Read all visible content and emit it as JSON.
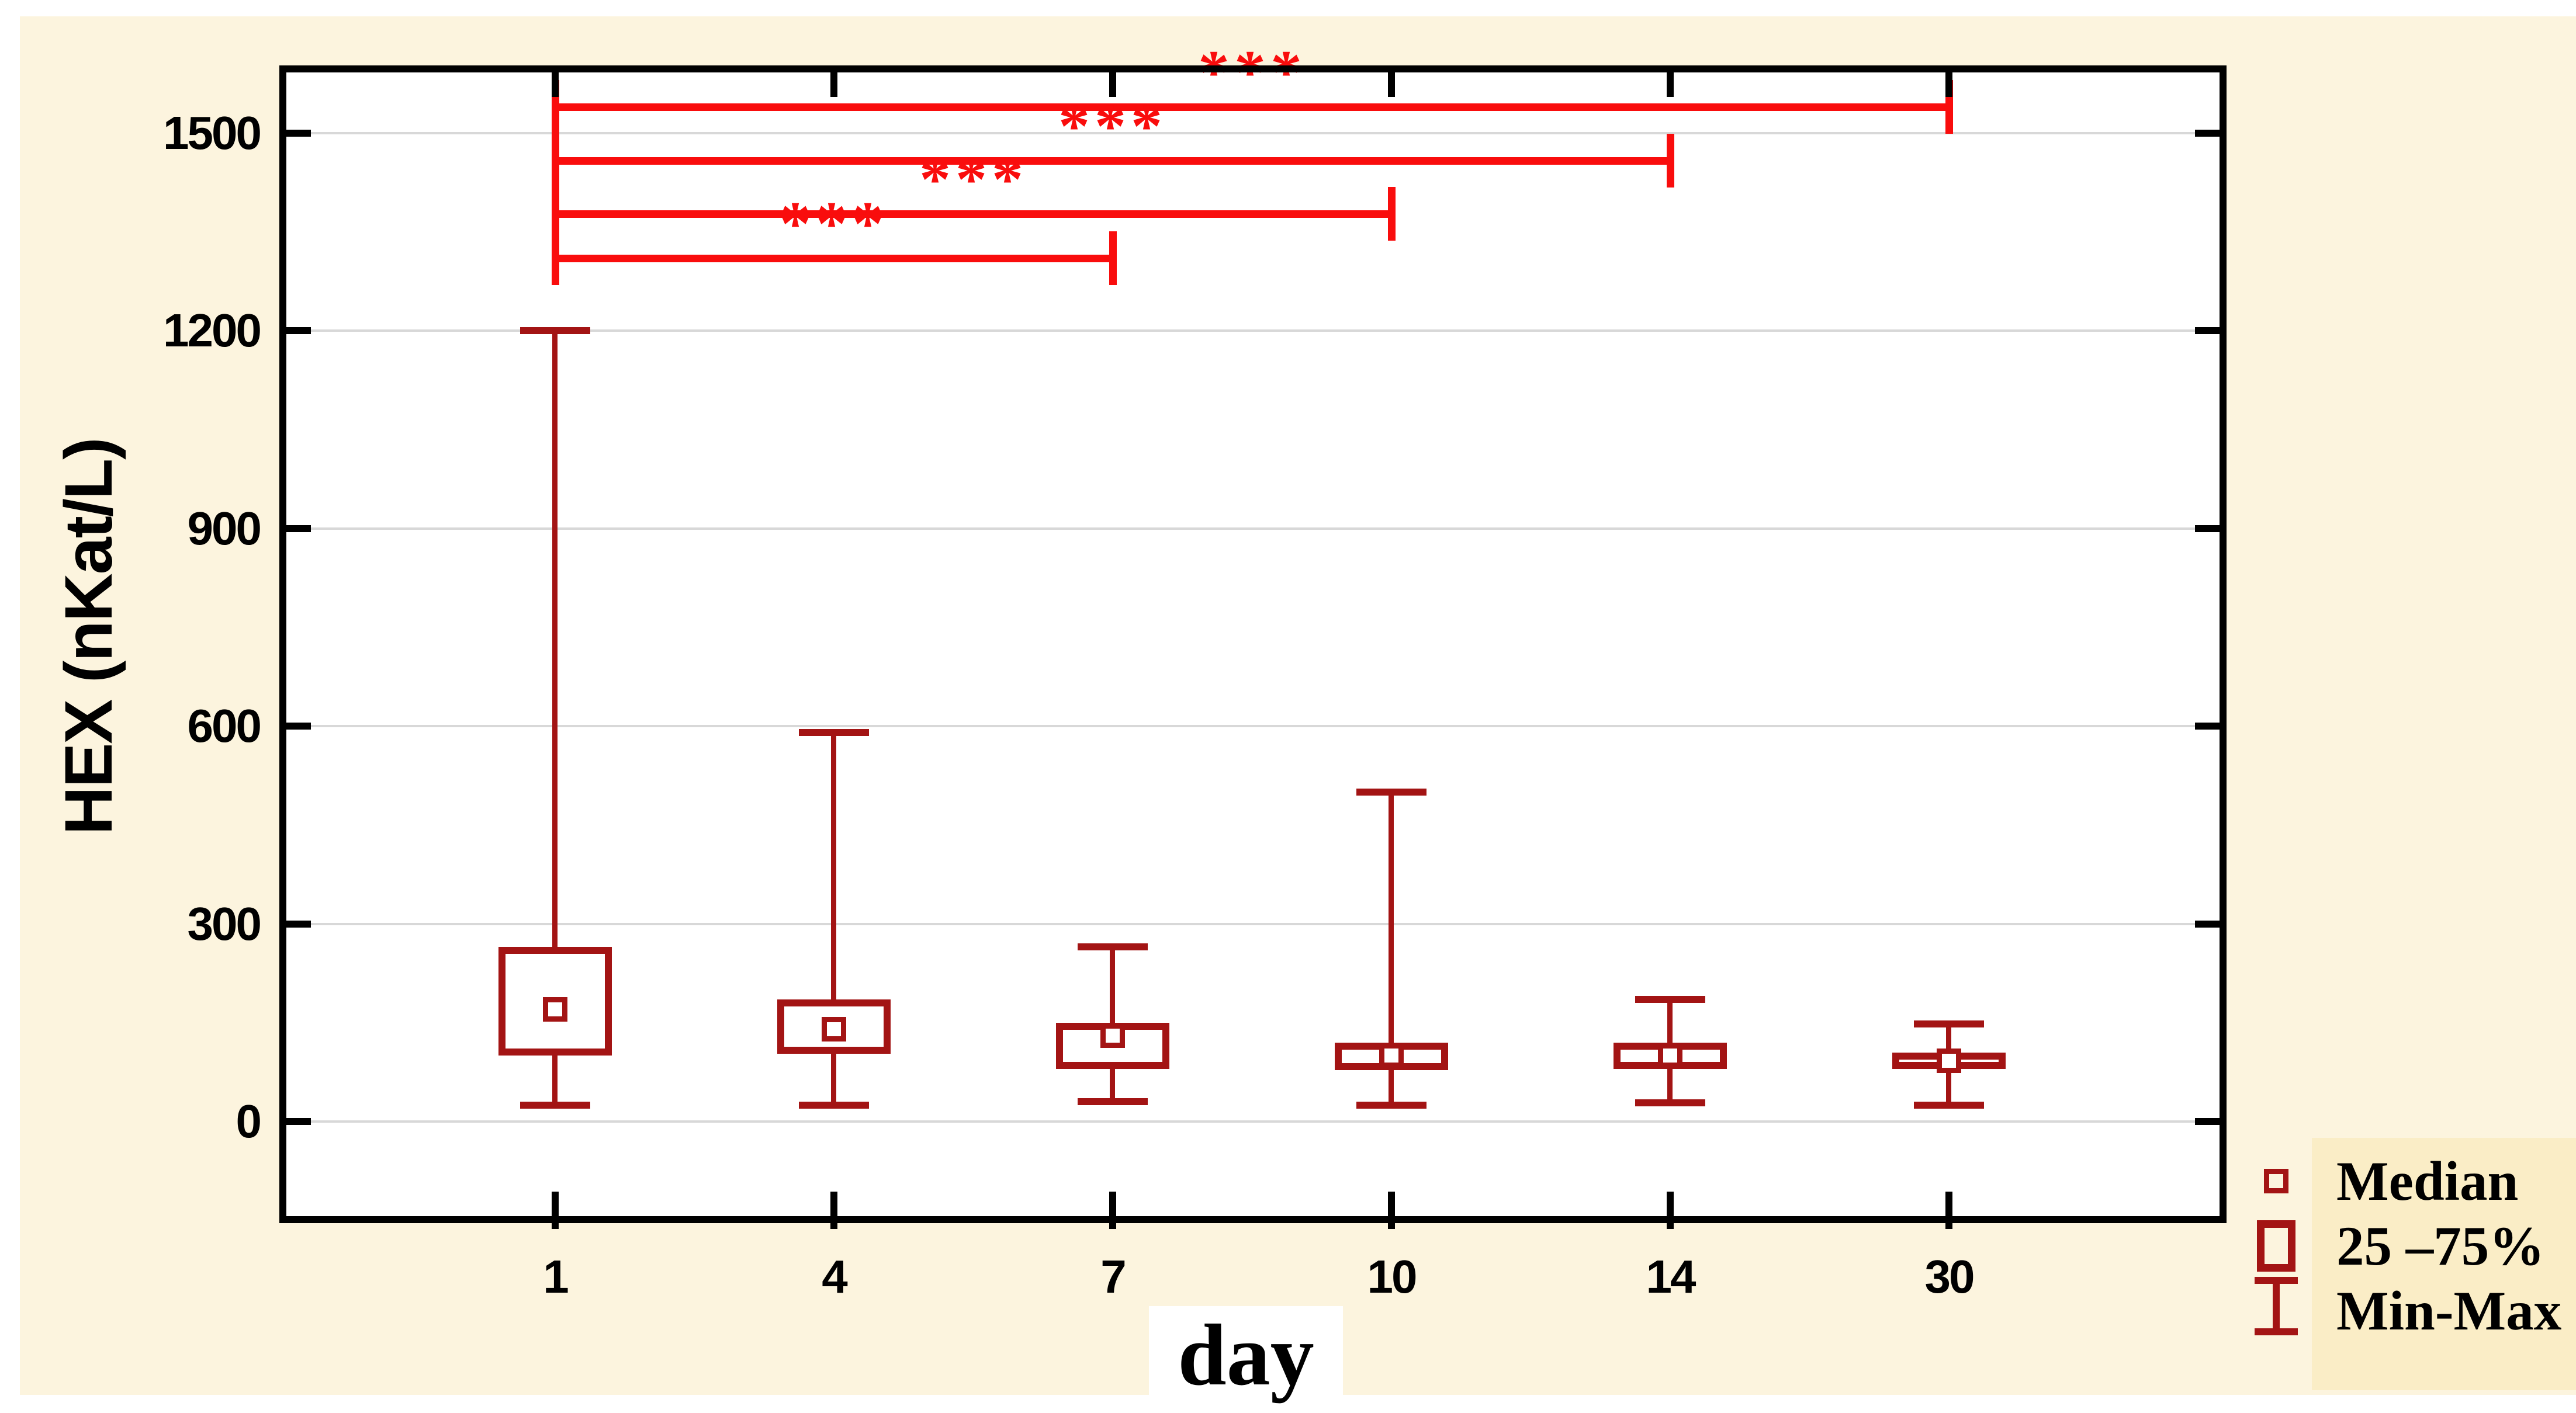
{
  "chart_data": {
    "type": "box",
    "title": "",
    "xlabel": "day",
    "ylabel": "HEX (nKat/L)",
    "categories": [
      "1",
      "4",
      "7",
      "10",
      "14",
      "30"
    ],
    "y_ticks": [
      0,
      300,
      600,
      900,
      1200,
      1500
    ],
    "ylim": [
      -155,
      1600
    ],
    "grid": "horizontal",
    "legend_position": "bottom-right",
    "series": [
      {
        "day": "1",
        "min": 25,
        "q1": 100,
        "median": 170,
        "q3": 265,
        "max": 1200
      },
      {
        "day": "4",
        "min": 25,
        "q1": 103,
        "median": 140,
        "q3": 185,
        "max": 590
      },
      {
        "day": "7",
        "min": 30,
        "q1": 80,
        "median": 130,
        "q3": 150,
        "max": 265
      },
      {
        "day": "10",
        "min": 25,
        "q1": 78,
        "median": 100,
        "q3": 120,
        "max": 500
      },
      {
        "day": "14",
        "min": 28,
        "q1": 80,
        "median": 100,
        "q3": 120,
        "max": 185
      },
      {
        "day": "30",
        "min": 25,
        "q1": 80,
        "median": 92,
        "q3": 105,
        "max": 148
      }
    ],
    "significance_brackets": [
      {
        "from": "1",
        "to": "7",
        "label": "***",
        "y_value": 1310
      },
      {
        "from": "1",
        "to": "10",
        "label": "***",
        "y_value": 1378
      },
      {
        "from": "1",
        "to": "14",
        "label": "***",
        "y_value": 1458
      },
      {
        "from": "1",
        "to": "30",
        "label": "***",
        "y_value": 1540
      }
    ],
    "legend": [
      {
        "symbol": "median-square",
        "label": "Median"
      },
      {
        "symbol": "iqr-box",
        "label": "25 –75%"
      },
      {
        "symbol": "min-max-whisker",
        "label": "Min-Max"
      }
    ],
    "colors": {
      "box": "#A31414",
      "significance": "#F90D0D",
      "grid": "#D8D8D8",
      "frame": "#000000",
      "page_background": "#FCF4DE",
      "legend_background": "#FAEDC6",
      "plot_background": "#FFFFFF",
      "text": "#000000"
    }
  }
}
